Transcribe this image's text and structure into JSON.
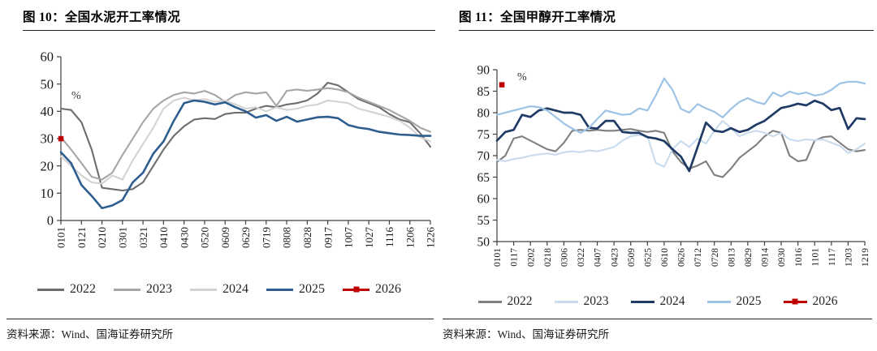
{
  "chart_data": [
    {
      "type": "line",
      "title": "图 10：全国水泥开工率情况",
      "unit": "%",
      "source": "资料来源：Wind、国海证券研究所",
      "legend_position": "bottom",
      "grid": false,
      "ylim": [
        0,
        60
      ],
      "y_ticks": [
        0,
        10,
        20,
        30,
        40,
        50,
        60
      ],
      "x_tick_labels": [
        "0101",
        "0121",
        "0210",
        "0301",
        "0321",
        "0410",
        "0430",
        "0520",
        "0609",
        "0629",
        "0719",
        "0808",
        "0828",
        "0917",
        "1007",
        "1027",
        "1116",
        "1206",
        "1226"
      ],
      "series": [
        {
          "name": "2022",
          "color": "#6d6d6d",
          "values": [
            41,
            40.5,
            36,
            26,
            12,
            11.5,
            11,
            11.5,
            14,
            20,
            26,
            31,
            34.5,
            37,
            37.5,
            37.2,
            39,
            39.5,
            39.5,
            41,
            42,
            41.5,
            42.5,
            43,
            44,
            46.5,
            50.5,
            49.5,
            47,
            44.5,
            43,
            41.5,
            39,
            37,
            36,
            32,
            27
          ]
        },
        {
          "name": "2023",
          "color": "#a6a6a6",
          "values": [
            30.5,
            26,
            21,
            16,
            15,
            17.5,
            24,
            30,
            36,
            41,
            44,
            46,
            47,
            46.5,
            47.5,
            46,
            43.5,
            46,
            47,
            46.5,
            47,
            42,
            47.5,
            48,
            47.5,
            48,
            48.5,
            48,
            47,
            45,
            43.5,
            42,
            40.5,
            38.5,
            36.5,
            34,
            32.5
          ]
        },
        {
          "name": "2024",
          "color": "#d3d3d3",
          "values": [
            23.5,
            20,
            16.5,
            14,
            13.5,
            16.5,
            15,
            22,
            28,
            34,
            41,
            44,
            45,
            44,
            44.5,
            43.5,
            44,
            42.5,
            41,
            41.5,
            40,
            41.5,
            40.5,
            41,
            42,
            42.5,
            44,
            43.5,
            43,
            41,
            40,
            39,
            38,
            36.5,
            34,
            30.5,
            29
          ]
        },
        {
          "name": "2025",
          "color": "#2e5e8f",
          "values": [
            25,
            21,
            13,
            9,
            4.5,
            5.5,
            7.5,
            14,
            17.5,
            24.5,
            29,
            36.5,
            43,
            44,
            43.5,
            42.5,
            43.3,
            41.5,
            40,
            37.7,
            38.6,
            36.5,
            38,
            36.2,
            37,
            37.8,
            38,
            37.5,
            35,
            34,
            33.5,
            32.5,
            32,
            31.5,
            31.3,
            31,
            31
          ]
        },
        {
          "name": "2026",
          "color": "#c00000",
          "marker": "square",
          "values": [
            30
          ]
        }
      ]
    },
    {
      "type": "line",
      "title": "图 11：全国甲醇开工率情况",
      "unit": "%",
      "source": "资料来源：Wind、国海证券研究所",
      "legend_position": "bottom",
      "grid": false,
      "ylim": [
        50,
        90
      ],
      "y_ticks": [
        50,
        55,
        60,
        65,
        70,
        75,
        80,
        85,
        90
      ],
      "x_tick_labels": [
        "0101",
        "0117",
        "0202",
        "0218",
        "0306",
        "0322",
        "0407",
        "0423",
        "0509",
        "0525",
        "0610",
        "0626",
        "0712",
        "0728",
        "0813",
        "0829",
        "0914",
        "0930",
        "1016",
        "1101",
        "1117",
        "1203",
        "1219"
      ],
      "series": [
        {
          "name": "2022",
          "color": "#7f7f7f",
          "values": [
            68.5,
            70,
            74,
            74.5,
            73.5,
            72.5,
            71.5,
            71,
            73,
            75.8,
            76,
            75.8,
            76,
            75.8,
            75.8,
            76,
            76.2,
            75.8,
            75.5,
            75.8,
            75.3,
            71,
            68.5,
            67,
            67.7,
            68.7,
            65.5,
            65,
            67,
            69.5,
            71,
            72.5,
            74.5,
            75.8,
            75.3,
            70,
            68.7,
            69,
            73.5,
            74.3,
            74.5,
            73,
            71.5,
            71,
            71.3
          ]
        },
        {
          "name": "2023",
          "color": "#c9dcee",
          "values": [
            69,
            68.7,
            69.2,
            69.5,
            70,
            70.3,
            70.5,
            70.2,
            70.8,
            71,
            70.8,
            71.2,
            71,
            71.5,
            72,
            73.5,
            74.5,
            74.8,
            74.5,
            68.3,
            67.4,
            71.5,
            73.4,
            72,
            74,
            72.8,
            75.8,
            78.1,
            76.4,
            74.5,
            75.3,
            75.8,
            75.3,
            74.5,
            75.3,
            73.8,
            73.4,
            73.8,
            73.6,
            73.8,
            73,
            72.3,
            70.6,
            71.5,
            72.8
          ]
        },
        {
          "name": "2024",
          "color": "#1f3a64",
          "values": [
            73.5,
            75.5,
            76,
            79.5,
            79,
            80.5,
            81,
            80.5,
            80,
            80,
            79.5,
            76.5,
            76.3,
            78.1,
            78.1,
            75.5,
            75.3,
            75.3,
            74.3,
            74,
            73.4,
            71.5,
            69.8,
            66.4,
            72,
            77.7,
            75.8,
            75.5,
            76.4,
            75.5,
            76,
            77.2,
            78.1,
            79.6,
            81.1,
            81.5,
            82.1,
            81.7,
            82.8,
            82.1,
            80.6,
            81.1,
            76.2,
            78.7,
            78.5
          ]
        },
        {
          "name": "2025",
          "color": "#9dc3e6",
          "values": [
            79.5,
            80,
            80.5,
            81,
            81.5,
            81.3,
            80.5,
            79,
            77.5,
            76.3,
            75.3,
            76.5,
            78.5,
            80.5,
            80,
            79.5,
            79.7,
            81,
            80.5,
            84,
            88,
            85.3,
            80.9,
            80,
            82,
            81,
            80.2,
            78.9,
            80.9,
            82.5,
            83.4,
            82.5,
            82,
            84.7,
            83.8,
            84.9,
            84.3,
            84.7,
            84,
            84.3,
            85.3,
            86.8,
            87.2,
            87.2,
            86.8
          ]
        },
        {
          "name": "2026",
          "color": "#c00000",
          "marker": "square",
          "values": [
            86.5
          ]
        }
      ]
    }
  ]
}
